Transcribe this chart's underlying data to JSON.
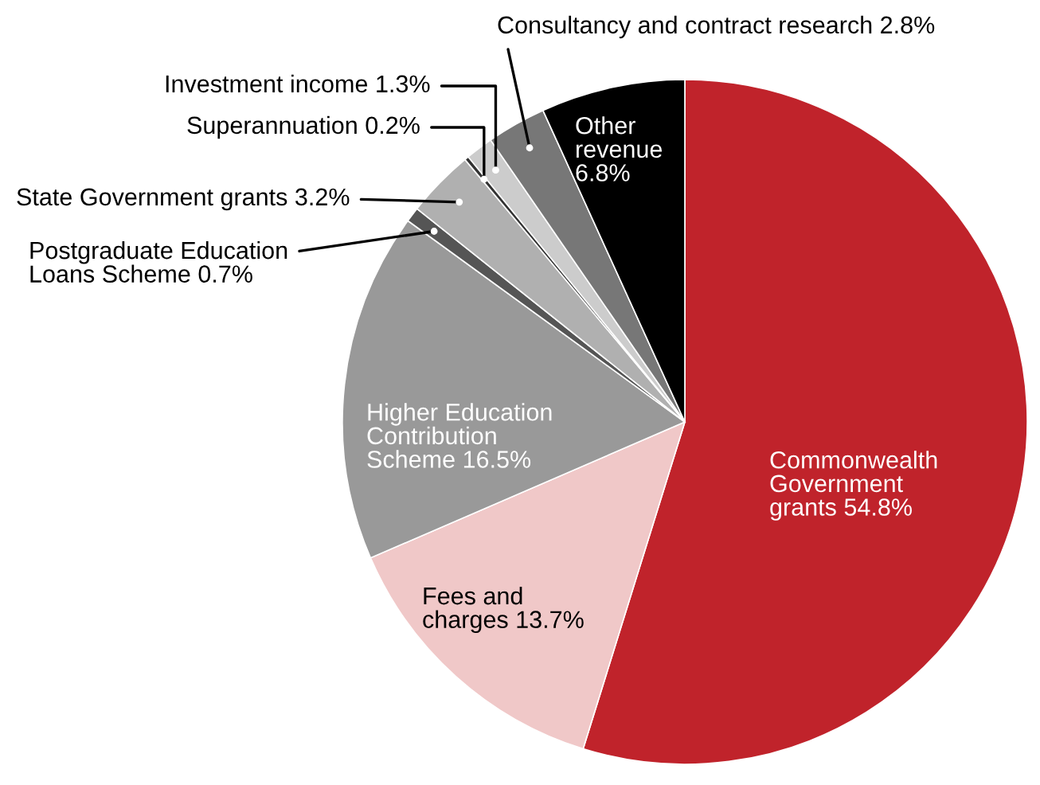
{
  "chart_data": {
    "type": "pie",
    "categories": [
      "Commonwealth\nGovernment\ngrants",
      "Fees and\ncharges",
      "Higher Education\nContribution\nScheme",
      "Postgraduate Education\nLoans Scheme",
      "State Government grants",
      "Superannuation",
      "Investment income",
      "Consultancy and contract research",
      "Other\nrevenue\n"
    ],
    "values": [
      54.8,
      13.7,
      16.5,
      0.7,
      3.2,
      0.2,
      1.3,
      2.8,
      6.8
    ],
    "colors": [
      "#c0232b",
      "#f0c8c8",
      "#999999",
      "#555555",
      "#b0b0b0",
      "#333333",
      "#cccccc",
      "#777777",
      "#000000"
    ],
    "value_labels": [
      "54.8%",
      "13.7%",
      "16.5%",
      "0.7%",
      "3.2%",
      "0.2%",
      "1.3%",
      "2.8%",
      "6.8%"
    ]
  }
}
